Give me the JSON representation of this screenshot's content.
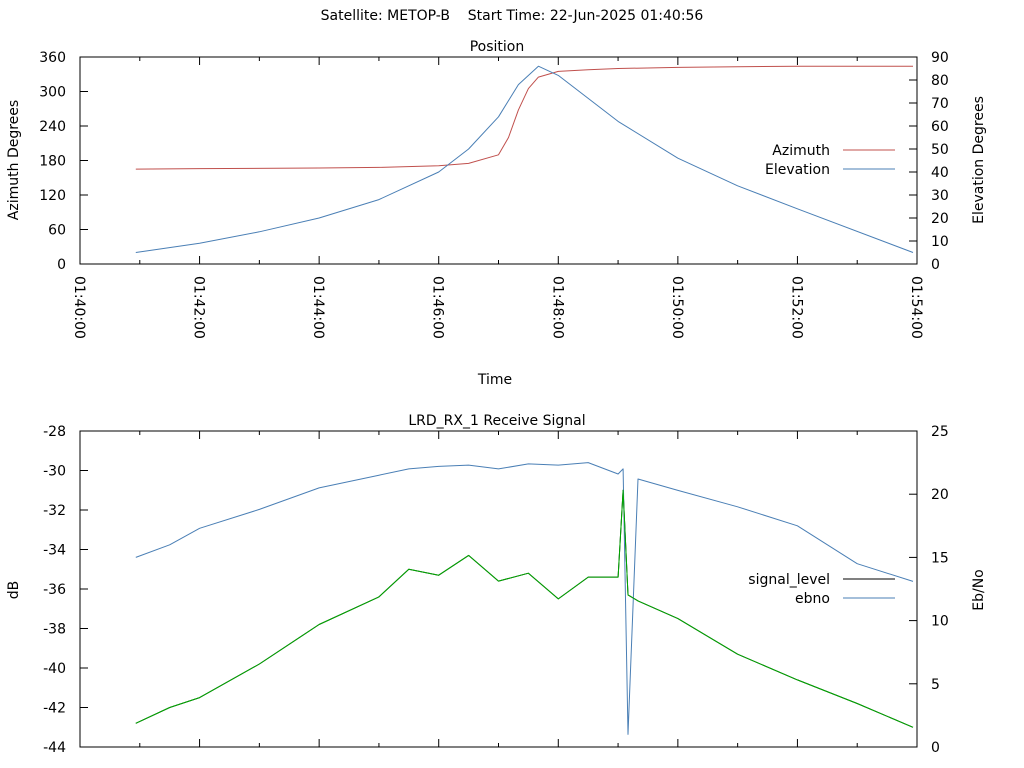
{
  "header": {
    "title": "Satellite: METOP-B    Start Time: 22-Jun-2025 01:40:56"
  },
  "chart_data": [
    {
      "type": "line",
      "title": "Position",
      "xlabel": "Time",
      "ylabel": "Azimuth Degrees",
      "y2label": "Elevation Degrees",
      "x_ticks": [
        "01:40:00",
        "01:42:00",
        "01:44:00",
        "01:46:00",
        "01:48:00",
        "01:50:00",
        "01:52:00",
        "01:54:00"
      ],
      "xlim": [
        "01:40:00",
        "01:54:00"
      ],
      "ylim": [
        0,
        360
      ],
      "y_ticks": [
        "0",
        "60",
        "120",
        "180",
        "240",
        "300",
        "360"
      ],
      "y2lim": [
        0,
        90
      ],
      "y2_ticks": [
        "0",
        "10",
        "20",
        "30",
        "40",
        "50",
        "60",
        "70",
        "80",
        "90"
      ],
      "legend_position": "right",
      "series": [
        {
          "name": "Azimuth",
          "axis": "y",
          "color": "#c0504d",
          "x": [
            "01:40:56",
            "01:42:00",
            "01:44:00",
            "01:45:00",
            "01:46:00",
            "01:46:30",
            "01:47:00",
            "01:47:10",
            "01:47:20",
            "01:47:30",
            "01:47:40",
            "01:48:00",
            "01:48:30",
            "01:49:00",
            "01:50:00",
            "01:51:00",
            "01:52:00",
            "01:53:56"
          ],
          "values": [
            165,
            166,
            167,
            168,
            171,
            175,
            190,
            220,
            268,
            305,
            325,
            335,
            338,
            340,
            342,
            343,
            344,
            344
          ]
        },
        {
          "name": "Elevation",
          "axis": "y2",
          "color": "#4a7fb5",
          "x": [
            "01:40:56",
            "01:42:00",
            "01:43:00",
            "01:44:00",
            "01:45:00",
            "01:46:00",
            "01:46:30",
            "01:47:00",
            "01:47:20",
            "01:47:40",
            "01:48:00",
            "01:48:30",
            "01:49:00",
            "01:50:00",
            "01:51:00",
            "01:52:00",
            "01:53:56"
          ],
          "values": [
            5,
            9,
            14,
            20,
            28,
            40,
            50,
            64,
            78,
            86,
            82,
            72,
            62,
            46,
            34,
            24,
            5
          ]
        }
      ]
    },
    {
      "type": "line",
      "title": "LRD_RX_1 Receive Signal",
      "ylabel": "dB",
      "y2label": "Eb/No",
      "ylim": [
        -44,
        -28
      ],
      "y_ticks": [
        "-44",
        "-42",
        "-40",
        "-38",
        "-36",
        "-34",
        "-32",
        "-30",
        "-28"
      ],
      "y2lim": [
        0,
        25
      ],
      "y2_ticks": [
        "0",
        "5",
        "10",
        "15",
        "20",
        "25"
      ],
      "xlim": [
        "01:40:00",
        "01:54:00"
      ],
      "legend_position": "right",
      "series": [
        {
          "name": "signal_level",
          "axis": "y",
          "color": "#000000",
          "x": [
            "01:40:56",
            "01:41:30",
            "01:42:00",
            "01:43:00",
            "01:44:00",
            "01:45:00",
            "01:45:30",
            "01:46:00",
            "01:46:30",
            "01:47:00",
            "01:47:30",
            "01:48:00",
            "01:48:30",
            "01:49:00",
            "01:49:05",
            "01:49:10",
            "01:49:20",
            "01:50:00",
            "01:51:00",
            "01:52:00",
            "01:53:00",
            "01:53:56"
          ],
          "values": [
            -42.8,
            -42.0,
            -41.5,
            -39.8,
            -37.8,
            -36.4,
            -35.0,
            -35.3,
            -34.3,
            -35.6,
            -35.2,
            -36.5,
            -35.4,
            -35.4,
            -31.0,
            -36.3,
            -36.6,
            -37.5,
            -39.3,
            -40.6,
            -41.8,
            -43.0
          ]
        },
        {
          "name": "ebno",
          "axis": "y2",
          "color": "#4a7fb5",
          "x": [
            "01:40:56",
            "01:41:30",
            "01:42:00",
            "01:43:00",
            "01:44:00",
            "01:45:00",
            "01:45:30",
            "01:46:00",
            "01:46:30",
            "01:47:00",
            "01:47:30",
            "01:48:00",
            "01:48:30",
            "01:49:00",
            "01:49:05",
            "01:49:10",
            "01:49:20",
            "01:50:00",
            "01:51:00",
            "01:52:00",
            "01:53:00",
            "01:53:56"
          ],
          "values": [
            15.0,
            16.0,
            17.3,
            18.8,
            20.5,
            21.5,
            22.0,
            22.2,
            22.3,
            22.0,
            22.4,
            22.3,
            22.5,
            21.6,
            22.0,
            1.0,
            21.2,
            20.3,
            19.0,
            17.5,
            14.5,
            13.1
          ]
        },
        {
          "name": "",
          "axis": "y",
          "color": "#00aa00",
          "x": [
            "01:40:56",
            "01:41:30",
            "01:42:00",
            "01:43:00",
            "01:44:00",
            "01:45:00",
            "01:45:30",
            "01:46:00",
            "01:46:30",
            "01:47:00",
            "01:47:30",
            "01:48:00",
            "01:48:30",
            "01:49:00",
            "01:49:05",
            "01:49:10",
            "01:49:20",
            "01:50:00",
            "01:51:00",
            "01:52:00",
            "01:53:00",
            "01:53:56"
          ],
          "values": [
            -42.8,
            -42.0,
            -41.5,
            -39.8,
            -37.8,
            -36.4,
            -35.0,
            -35.3,
            -34.3,
            -35.6,
            -35.2,
            -36.5,
            -35.4,
            -35.4,
            -31.0,
            -36.3,
            -36.6,
            -37.5,
            -39.3,
            -40.6,
            -41.8,
            -43.0
          ]
        }
      ]
    }
  ]
}
